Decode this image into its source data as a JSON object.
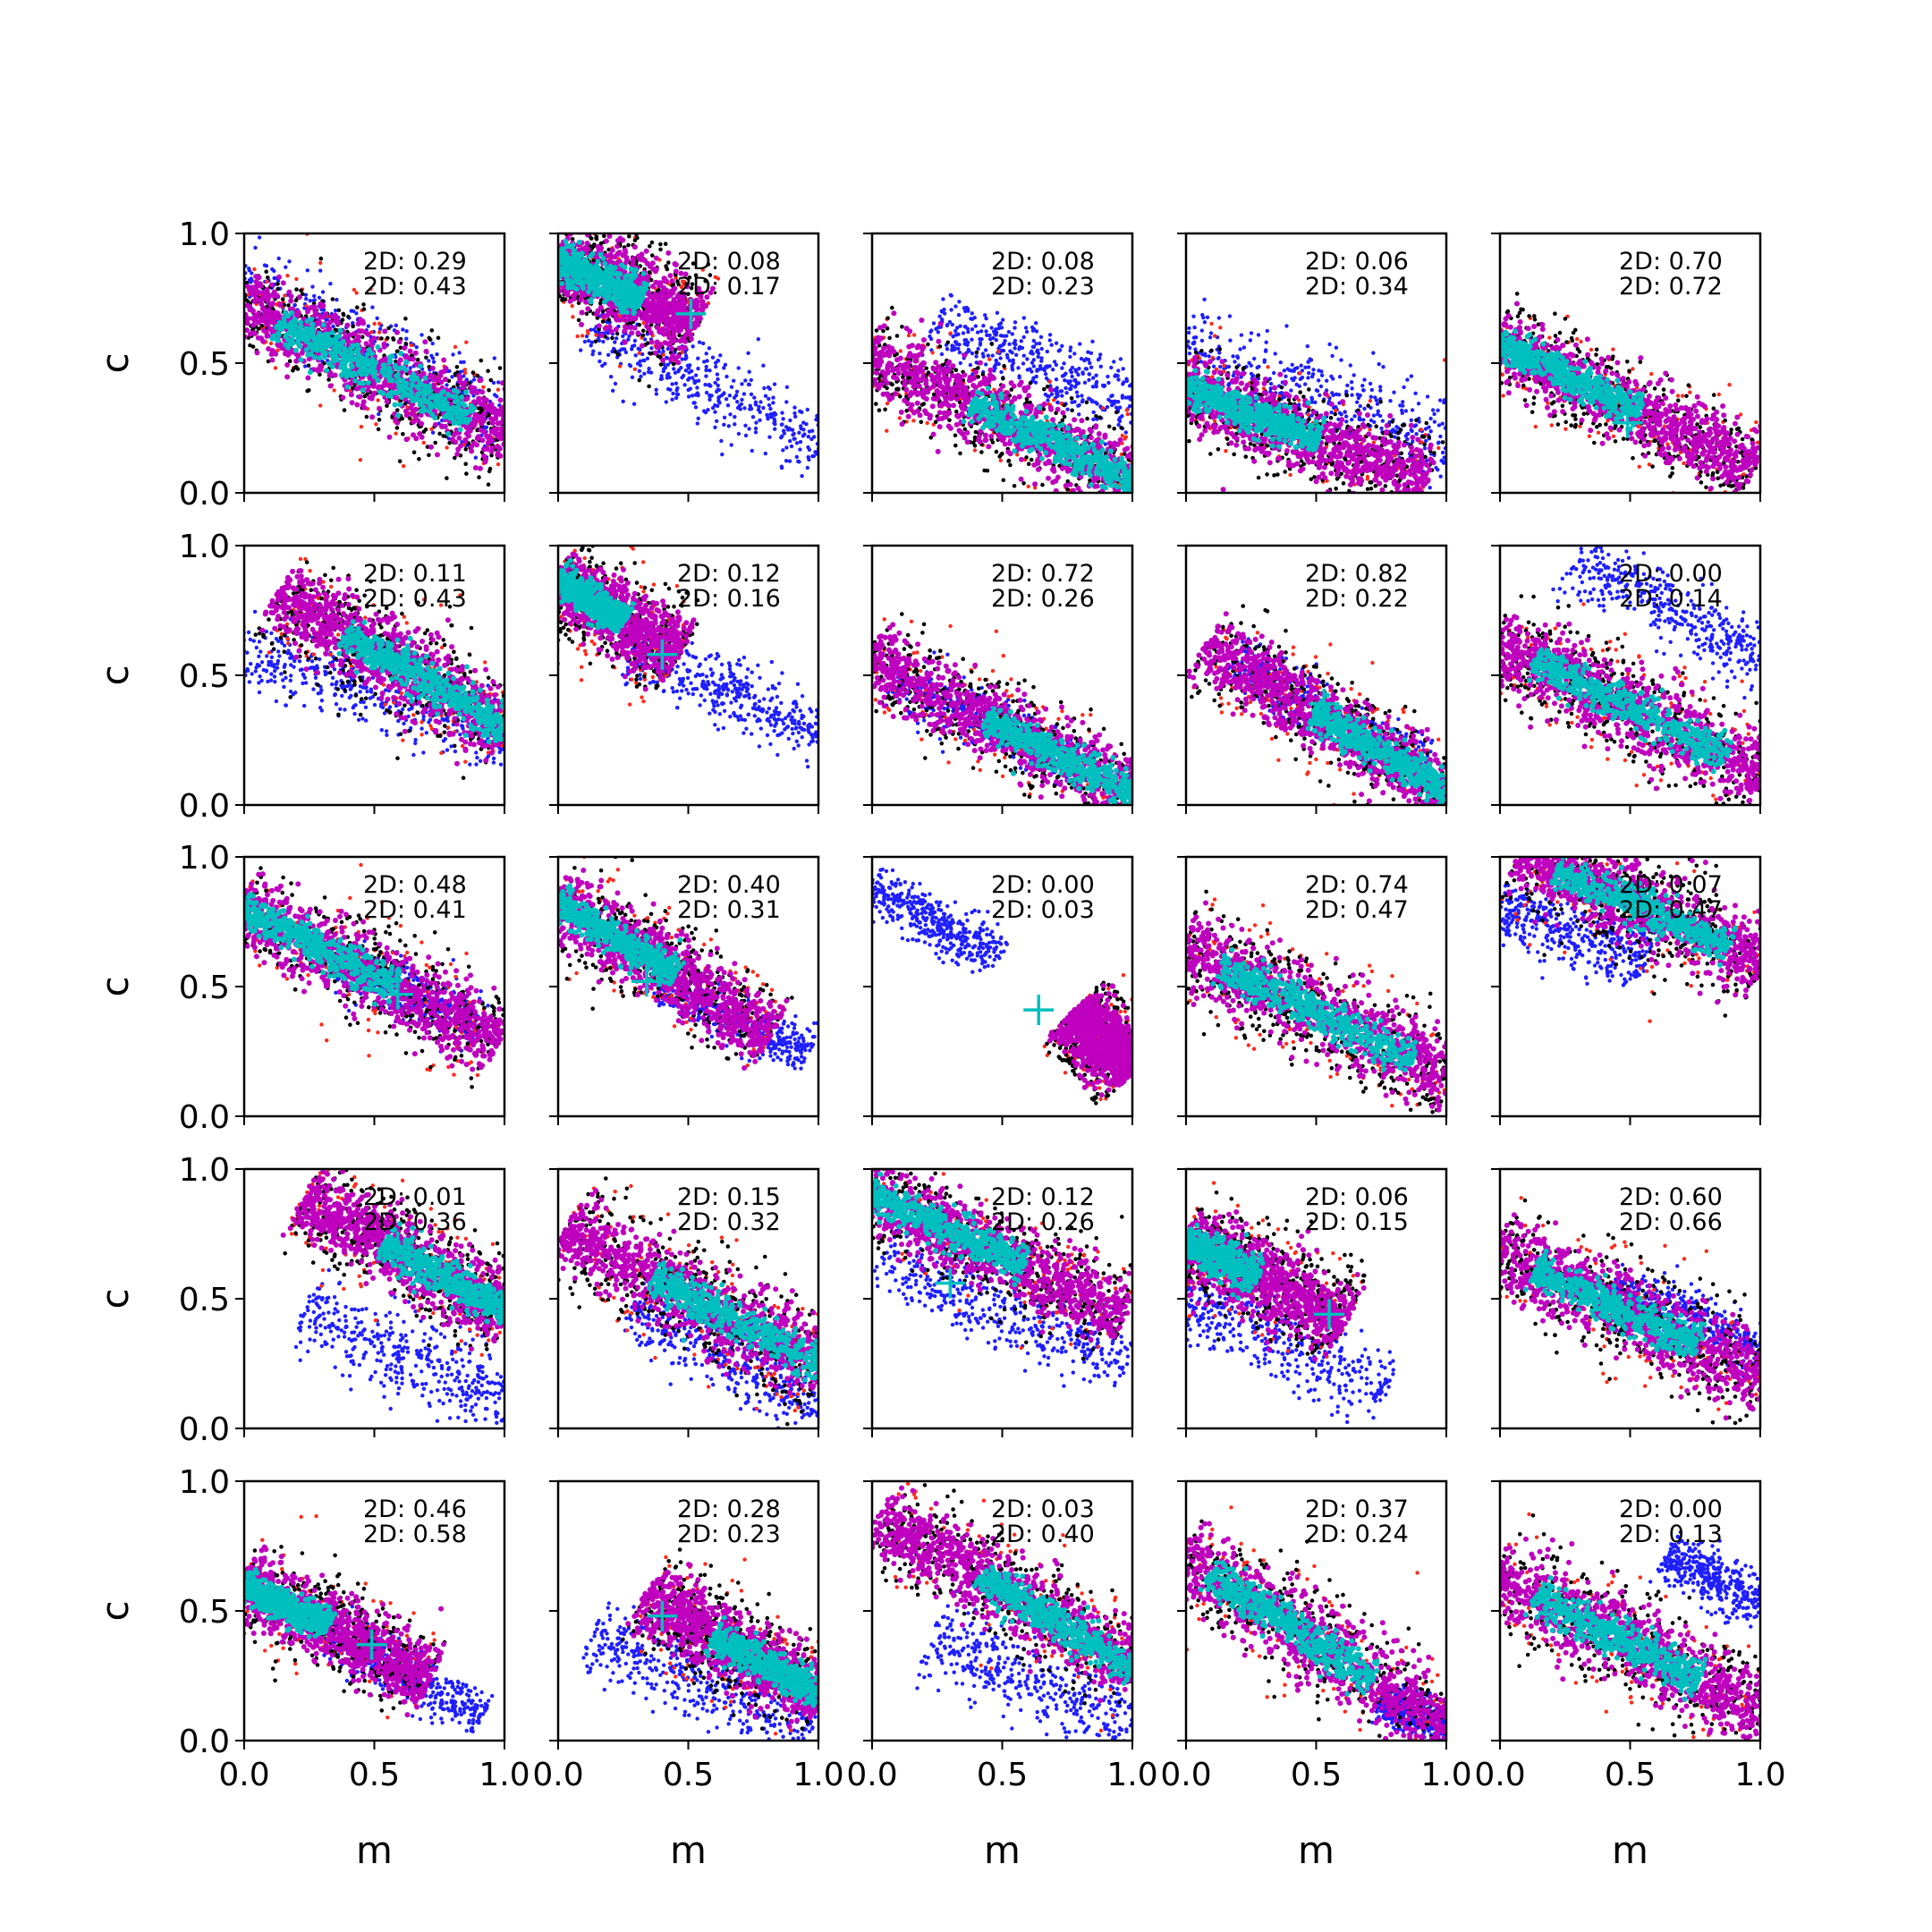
{
  "figure": {
    "type": "scatter-grid",
    "rows": 5,
    "cols": 5,
    "xlabel": "m",
    "ylabel": "c",
    "xlim": [
      0,
      1
    ],
    "ylim": [
      0,
      1
    ],
    "xticks": [
      "0.0",
      "0.5",
      "1.0"
    ],
    "yticks": [
      "0.0",
      "0.5",
      "1.0"
    ],
    "colors": {
      "red": "#ff2a1a",
      "black": "#000000",
      "blue": "#1f1fff",
      "magenta": "#bf00bf",
      "cyan": "#00bfbf"
    },
    "annotation_prefix": "2D: "
  },
  "chart_data": [
    {
      "type": "scatter",
      "row": 0,
      "col": 0,
      "annotations": [
        "0.29",
        "0.43"
      ],
      "marker": null,
      "main": {
        "x0": 0.0,
        "c0": 0.72,
        "x1": 1.0,
        "c1": 0.22,
        "w": 0.15,
        "cy": [
          0.15,
          0.85
        ]
      },
      "blue": {
        "x0": 0.0,
        "c0": 0.8,
        "x1": 1.0,
        "c1": 0.28,
        "w": 0.14,
        "cy": [
          0.0,
          1.0
        ]
      }
    },
    {
      "type": "scatter",
      "row": 0,
      "col": 1,
      "annotations": [
        "0.08",
        "0.17"
      ],
      "marker": {
        "m": 0.51,
        "c": 0.69
      },
      "main": {
        "x0": 0.0,
        "c0": 0.9,
        "x1": 0.52,
        "c1": 0.65,
        "w": 0.15,
        "cy": [
          0.0,
          0.6
        ]
      },
      "blue": {
        "x0": 0.15,
        "c0": 0.62,
        "x1": 1.0,
        "c1": 0.2,
        "w": 0.14,
        "cy": [
          0.0,
          1.0
        ]
      }
    },
    {
      "type": "scatter",
      "row": 0,
      "col": 2,
      "annotations": [
        "0.08",
        "0.23"
      ],
      "marker": null,
      "main": {
        "x0": 0.0,
        "c0": 0.52,
        "x1": 1.0,
        "c1": 0.05,
        "w": 0.14,
        "cy": [
          0.4,
          1.0
        ]
      },
      "blue": {
        "x0": 0.25,
        "c0": 0.65,
        "x1": 1.0,
        "c1": 0.35,
        "w": 0.13,
        "cy": [
          0.0,
          1.0
        ]
      }
    },
    {
      "type": "scatter",
      "row": 0,
      "col": 3,
      "annotations": [
        "0.06",
        "0.34"
      ],
      "marker": {
        "m": 0.36,
        "c": 0.29
      },
      "main": {
        "x0": 0.0,
        "c0": 0.4,
        "x1": 0.9,
        "c1": 0.05,
        "w": 0.14,
        "cy": [
          0.0,
          0.55
        ]
      },
      "blue": {
        "x0": 0.0,
        "c0": 0.55,
        "x1": 1.0,
        "c1": 0.22,
        "w": 0.15,
        "cy": [
          0.0,
          1.0
        ]
      }
    },
    {
      "type": "scatter",
      "row": 0,
      "col": 4,
      "annotations": [
        "0.70",
        "0.72"
      ],
      "marker": {
        "m": 0.49,
        "c": 0.27
      },
      "main": {
        "x0": 0.0,
        "c0": 0.58,
        "x1": 0.95,
        "c1": 0.1,
        "w": 0.13,
        "cy": [
          0.0,
          0.55
        ]
      },
      "blue": null
    },
    {
      "type": "scatter",
      "row": 1,
      "col": 0,
      "annotations": [
        "0.11",
        "0.43"
      ],
      "marker": {
        "m": 0.49,
        "c": 0.58
      },
      "main": {
        "x0": 0.15,
        "c0": 0.8,
        "x1": 1.0,
        "c1": 0.3,
        "w": 0.15,
        "cy": [
          0.3,
          1.0
        ]
      },
      "blue": {
        "x0": 0.0,
        "c0": 0.6,
        "x1": 1.0,
        "c1": 0.25,
        "w": 0.14,
        "cy": [
          0.0,
          1.0
        ]
      }
    },
    {
      "type": "scatter",
      "row": 1,
      "col": 1,
      "annotations": [
        "0.12",
        "0.16"
      ],
      "marker": {
        "m": 0.4,
        "c": 0.58
      },
      "main": {
        "x0": 0.0,
        "c0": 0.87,
        "x1": 0.45,
        "c1": 0.58,
        "w": 0.13,
        "cy": [
          0.0,
          0.55
        ]
      },
      "blue": {
        "x0": 0.3,
        "c0": 0.58,
        "x1": 1.0,
        "c1": 0.28,
        "w": 0.12,
        "cy": [
          0.0,
          1.0
        ]
      }
    },
    {
      "type": "scatter",
      "row": 1,
      "col": 2,
      "annotations": [
        "0.72",
        "0.26"
      ],
      "marker": {
        "m": 0.55,
        "c": 0.26
      },
      "main": {
        "x0": 0.0,
        "c0": 0.55,
        "x1": 1.0,
        "c1": 0.05,
        "w": 0.13,
        "cy": [
          0.45,
          1.0
        ]
      },
      "blue": {
        "x0": 0.1,
        "c0": 0.47,
        "x1": 0.8,
        "c1": 0.15,
        "w": 0.1,
        "cy": [
          0.0,
          1.0
        ]
      }
    },
    {
      "type": "scatter",
      "row": 1,
      "col": 3,
      "annotations": [
        "0.82",
        "0.22"
      ],
      "marker": {
        "m": 0.53,
        "c": 0.39
      },
      "main": {
        "x0": 0.1,
        "c0": 0.6,
        "x1": 1.0,
        "c1": 0.05,
        "w": 0.13,
        "cy": [
          0.45,
          1.0
        ]
      },
      "blue": {
        "x0": 0.2,
        "c0": 0.55,
        "x1": 0.9,
        "c1": 0.15,
        "w": 0.1,
        "cy": [
          0.0,
          1.0
        ]
      }
    },
    {
      "type": "scatter",
      "row": 1,
      "col": 4,
      "annotations": [
        "0.00",
        "0.14"
      ],
      "marker": null,
      "main": {
        "x0": 0.0,
        "c0": 0.62,
        "x1": 1.0,
        "c1": 0.12,
        "w": 0.15,
        "cy": [
          0.15,
          0.85
        ]
      },
      "blue": {
        "x0": 0.3,
        "c0": 0.95,
        "x1": 1.0,
        "c1": 0.55,
        "w": 0.12,
        "cy": [
          0.0,
          1.0
        ]
      }
    },
    {
      "type": "scatter",
      "row": 2,
      "col": 0,
      "annotations": [
        "0.48",
        "0.41"
      ],
      "marker": {
        "m": 0.59,
        "c": 0.47
      },
      "main": {
        "x0": 0.0,
        "c0": 0.8,
        "x1": 0.95,
        "c1": 0.3,
        "w": 0.14,
        "cy": [
          0.0,
          0.6
        ]
      },
      "blue": {
        "x0": 0.4,
        "c0": 0.58,
        "x1": 0.9,
        "c1": 0.35,
        "w": 0.1,
        "cy": [
          0.0,
          1.0
        ]
      }
    },
    {
      "type": "scatter",
      "row": 2,
      "col": 1,
      "annotations": [
        "0.40",
        "0.31"
      ],
      "marker": {
        "m": 0.34,
        "c": 0.52
      },
      "main": {
        "x0": 0.0,
        "c0": 0.82,
        "x1": 0.8,
        "c1": 0.33,
        "w": 0.13,
        "cy": [
          0.0,
          0.55
        ]
      },
      "blue": {
        "x0": 0.4,
        "c0": 0.5,
        "x1": 0.95,
        "c1": 0.25,
        "w": 0.09,
        "cy": [
          0.0,
          1.0
        ]
      }
    },
    {
      "type": "scatter",
      "row": 2,
      "col": 2,
      "annotations": [
        "0.00",
        "0.03"
      ],
      "marker": {
        "m": 0.64,
        "c": 0.41
      },
      "main": {
        "x0": 0.78,
        "c0": 0.4,
        "x1": 1.0,
        "c1": 0.18,
        "w": 0.13,
        "cy": [
          0.0,
          0.0
        ]
      },
      "blue": {
        "x0": 0.0,
        "c0": 0.88,
        "x1": 0.48,
        "c1": 0.62,
        "w": 0.09,
        "cy": [
          0.0,
          1.0
        ]
      }
    },
    {
      "type": "scatter",
      "row": 2,
      "col": 3,
      "annotations": [
        "0.74",
        "0.47"
      ],
      "marker": null,
      "main": {
        "x0": 0.0,
        "c0": 0.65,
        "x1": 1.0,
        "c1": 0.15,
        "w": 0.15,
        "cy": [
          0.15,
          0.85
        ]
      },
      "blue": null
    },
    {
      "type": "scatter",
      "row": 2,
      "col": 4,
      "annotations": [
        "0.07",
        "0.47"
      ],
      "marker": null,
      "main": {
        "x0": 0.1,
        "c0": 1.0,
        "x1": 1.0,
        "c1": 0.6,
        "w": 0.15,
        "cy": [
          0.15,
          0.85
        ]
      },
      "blue": {
        "x0": 0.0,
        "c0": 0.8,
        "x1": 0.55,
        "c1": 0.6,
        "w": 0.13,
        "cy": [
          0.0,
          1.0
        ]
      }
    },
    {
      "type": "scatter",
      "row": 3,
      "col": 0,
      "annotations": [
        "0.01",
        "0.36"
      ],
      "marker": {
        "m": 0.59,
        "c": 0.7
      },
      "main": {
        "x0": 0.25,
        "c0": 0.88,
        "x1": 1.0,
        "c1": 0.45,
        "w": 0.14,
        "cy": [
          0.4,
          1.0
        ]
      },
      "blue": {
        "x0": 0.25,
        "c0": 0.45,
        "x1": 1.0,
        "c1": 0.1,
        "w": 0.15,
        "cy": [
          0.0,
          1.0
        ]
      }
    },
    {
      "type": "scatter",
      "row": 3,
      "col": 1,
      "annotations": [
        "0.15",
        "0.32"
      ],
      "marker": null,
      "main": {
        "x0": 0.05,
        "c0": 0.75,
        "x1": 1.0,
        "c1": 0.25,
        "w": 0.15,
        "cy": [
          0.35,
          1.0
        ]
      },
      "blue": {
        "x0": 0.3,
        "c0": 0.45,
        "x1": 1.0,
        "c1": 0.1,
        "w": 0.13,
        "cy": [
          0.0,
          1.0
        ]
      }
    },
    {
      "type": "scatter",
      "row": 3,
      "col": 2,
      "annotations": [
        "0.12",
        "0.26"
      ],
      "marker": {
        "m": 0.3,
        "c": 0.56
      },
      "main": {
        "x0": 0.0,
        "c0": 0.9,
        "x1": 0.95,
        "c1": 0.45,
        "w": 0.14,
        "cy": [
          0.0,
          0.6
        ]
      },
      "blue": {
        "x0": 0.05,
        "c0": 0.65,
        "x1": 0.95,
        "c1": 0.25,
        "w": 0.13,
        "cy": [
          0.0,
          1.0
        ]
      }
    },
    {
      "type": "scatter",
      "row": 3,
      "col": 3,
      "annotations": [
        "0.06",
        "0.15"
      ],
      "marker": {
        "m": 0.55,
        "c": 0.44
      },
      "main": {
        "x0": 0.0,
        "c0": 0.72,
        "x1": 0.6,
        "c1": 0.42,
        "w": 0.15,
        "cy": [
          0.0,
          0.45
        ]
      },
      "blue": {
        "x0": 0.0,
        "c0": 0.5,
        "x1": 0.75,
        "c1": 0.15,
        "w": 0.14,
        "cy": [
          0.0,
          1.0
        ]
      }
    },
    {
      "type": "scatter",
      "row": 3,
      "col": 4,
      "annotations": [
        "0.60",
        "0.66"
      ],
      "marker": null,
      "main": {
        "x0": 0.0,
        "c0": 0.68,
        "x1": 1.0,
        "c1": 0.2,
        "w": 0.15,
        "cy": [
          0.15,
          0.75
        ]
      },
      "blue": {
        "x0": 0.45,
        "c0": 0.55,
        "x1": 1.0,
        "c1": 0.3,
        "w": 0.1,
        "cy": [
          0.0,
          1.0
        ]
      }
    },
    {
      "type": "scatter",
      "row": 4,
      "col": 0,
      "annotations": [
        "0.46",
        "0.58"
      ],
      "marker": {
        "m": 0.49,
        "c": 0.37
      },
      "main": {
        "x0": 0.0,
        "c0": 0.6,
        "x1": 0.7,
        "c1": 0.25,
        "w": 0.13,
        "cy": [
          0.0,
          0.45
        ]
      },
      "blue": {
        "x0": 0.35,
        "c0": 0.4,
        "x1": 0.9,
        "c1": 0.1,
        "w": 0.09,
        "cy": [
          0.0,
          1.0
        ]
      }
    },
    {
      "type": "scatter",
      "row": 4,
      "col": 1,
      "annotations": [
        "0.28",
        "0.23"
      ],
      "marker": {
        "m": 0.4,
        "c": 0.48
      },
      "main": {
        "x0": 0.35,
        "c0": 0.55,
        "x1": 1.0,
        "c1": 0.18,
        "w": 0.14,
        "cy": [
          0.4,
          1.0
        ]
      },
      "blue": {
        "x0": 0.15,
        "c0": 0.4,
        "x1": 0.95,
        "c1": 0.05,
        "w": 0.14,
        "cy": [
          0.0,
          1.0
        ]
      }
    },
    {
      "type": "scatter",
      "row": 4,
      "col": 2,
      "annotations": [
        "0.03",
        "0.40"
      ],
      "marker": null,
      "main": {
        "x0": 0.05,
        "c0": 0.85,
        "x1": 1.0,
        "c1": 0.28,
        "w": 0.14,
        "cy": [
          0.4,
          1.0
        ]
      },
      "blue": {
        "x0": 0.25,
        "c0": 0.4,
        "x1": 1.0,
        "c1": 0.05,
        "w": 0.14,
        "cy": [
          0.0,
          1.0
        ]
      }
    },
    {
      "type": "scatter",
      "row": 4,
      "col": 3,
      "annotations": [
        "0.37",
        "0.24"
      ],
      "marker": null,
      "main": {
        "x0": 0.0,
        "c0": 0.7,
        "x1": 1.0,
        "c1": 0.05,
        "w": 0.15,
        "cy": [
          0.1,
          0.7
        ]
      },
      "blue": {
        "x0": 0.75,
        "c0": 0.15,
        "x1": 1.0,
        "c1": 0.05,
        "w": 0.08,
        "cy": [
          0.0,
          1.0
        ]
      }
    },
    {
      "type": "scatter",
      "row": 4,
      "col": 4,
      "annotations": [
        "0.00",
        "0.13"
      ],
      "marker": null,
      "main": {
        "x0": 0.0,
        "c0": 0.62,
        "x1": 1.0,
        "c1": 0.12,
        "w": 0.15,
        "cy": [
          0.15,
          0.75
        ]
      },
      "blue": {
        "x0": 0.65,
        "c0": 0.72,
        "x1": 1.0,
        "c1": 0.52,
        "w": 0.1,
        "cy": [
          0.0,
          1.0
        ]
      }
    }
  ]
}
